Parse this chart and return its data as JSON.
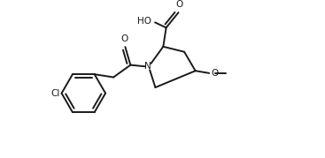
{
  "background_color": "#ffffff",
  "line_color": "#1a1a1a",
  "line_width": 1.4,
  "font_size": 7.5,
  "fig_width": 3.67,
  "fig_height": 1.79,
  "dpi": 100,
  "xlim": [
    0.0,
    10.0
  ],
  "ylim": [
    0.0,
    5.0
  ]
}
